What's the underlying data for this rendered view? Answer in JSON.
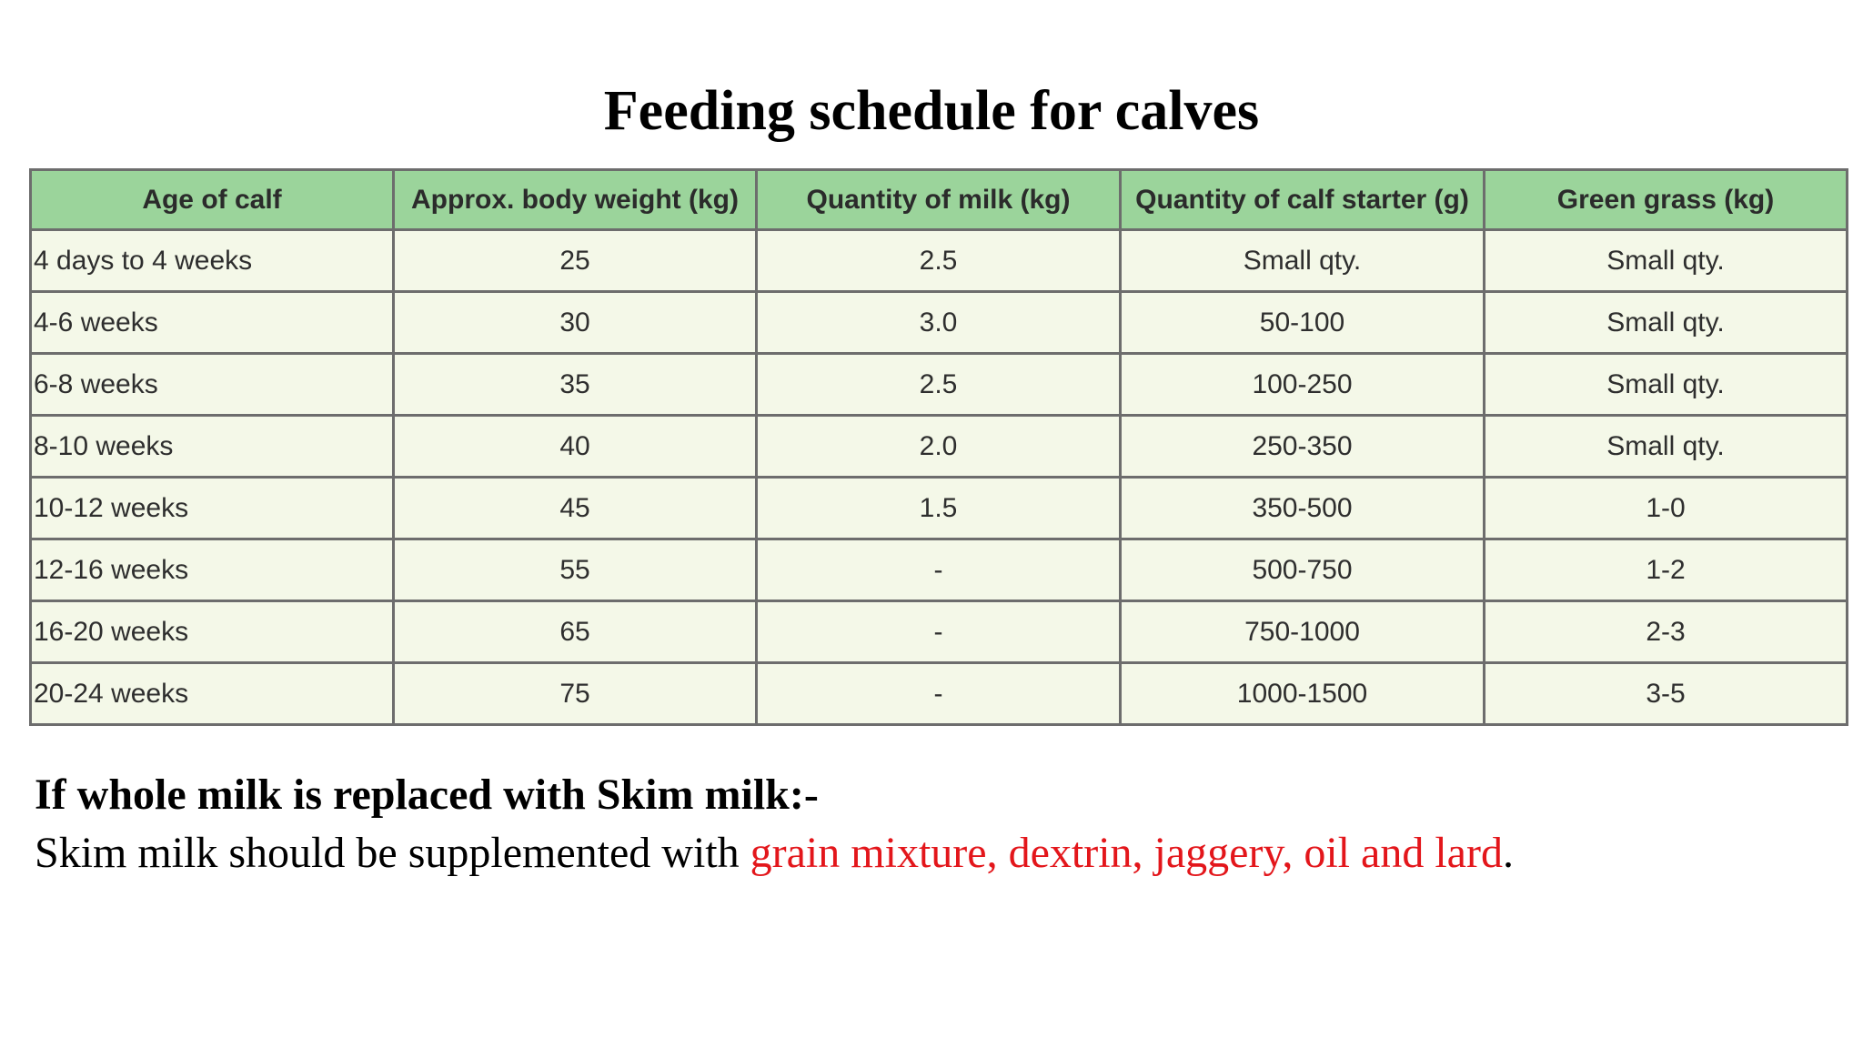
{
  "title": "Feeding schedule for calves",
  "table": {
    "headers": [
      "Age of calf",
      "Approx. body weight (kg)",
      "Quantity of milk (kg)",
      "Quantity of calf starter (g)",
      "Green grass (kg)"
    ],
    "rows": [
      [
        "4 days to 4 weeks",
        "25",
        "2.5",
        "Small qty.",
        "Small qty."
      ],
      [
        "4-6 weeks",
        "30",
        "3.0",
        "50-100",
        "Small qty."
      ],
      [
        "6-8 weeks",
        "35",
        "2.5",
        "100-250",
        "Small qty."
      ],
      [
        "8-10 weeks",
        "40",
        "2.0",
        "250-350",
        "Small qty."
      ],
      [
        "10-12 weeks",
        "45",
        "1.5",
        "350-500",
        "1-0"
      ],
      [
        "12-16 weeks",
        "55",
        "-",
        "500-750",
        "1-2"
      ],
      [
        "16-20 weeks",
        "65",
        "-",
        "750-1000",
        "2-3"
      ],
      [
        "20-24 weeks",
        "75",
        "-",
        "1000-1500",
        "3-5"
      ]
    ],
    "colors": {
      "header_bg": "#9bd49b",
      "body_bg": "#f4f8e8",
      "border": "#6d6d6d"
    }
  },
  "note": {
    "heading": "If whole milk is replaced with Skim milk:-",
    "body_prefix": "Skim milk should be supplemented with ",
    "body_highlight": "grain mixture, dextrin, jaggery, oil and lard",
    "body_suffix": ".",
    "highlight_color": "#e3161b"
  }
}
